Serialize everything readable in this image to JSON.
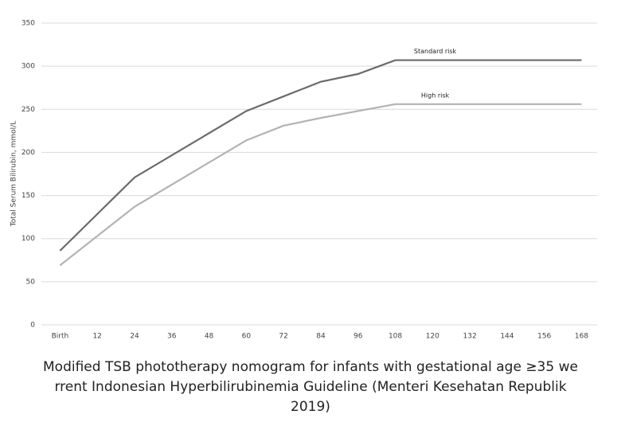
{
  "chart_data": {
    "type": "line",
    "y_label": "Total Serum Bilirubin, mmol/L",
    "x": [
      0,
      24,
      60,
      72,
      84,
      96,
      108,
      168
    ],
    "series": [
      {
        "name": "Standard risk",
        "color": "#6a6a6a",
        "values": [
          86,
          171,
          248,
          265,
          282,
          291,
          307,
          307
        ]
      },
      {
        "name": "High risk",
        "color": "#b3b3b3",
        "values": [
          69,
          137,
          214,
          231,
          240,
          248,
          256,
          256
        ]
      }
    ],
    "xlim": [
      -6,
      173
    ],
    "xticks": [
      {
        "value": 0,
        "label": "Birth"
      },
      12,
      24,
      36,
      48,
      60,
      72,
      84,
      96,
      108,
      120,
      132,
      144,
      156,
      168
    ],
    "ylim": [
      0,
      350
    ],
    "yticks": [
      0,
      50,
      100,
      150,
      200,
      250,
      300,
      350
    ],
    "grid": true,
    "caption": [
      "Modified TSB phototherapy nomogram for infants with gestational age ≥35 we",
      "rrent Indonesian Hyperbilirubinemia Guideline (Menteri Kesehatan Republik",
      "2019)"
    ]
  }
}
